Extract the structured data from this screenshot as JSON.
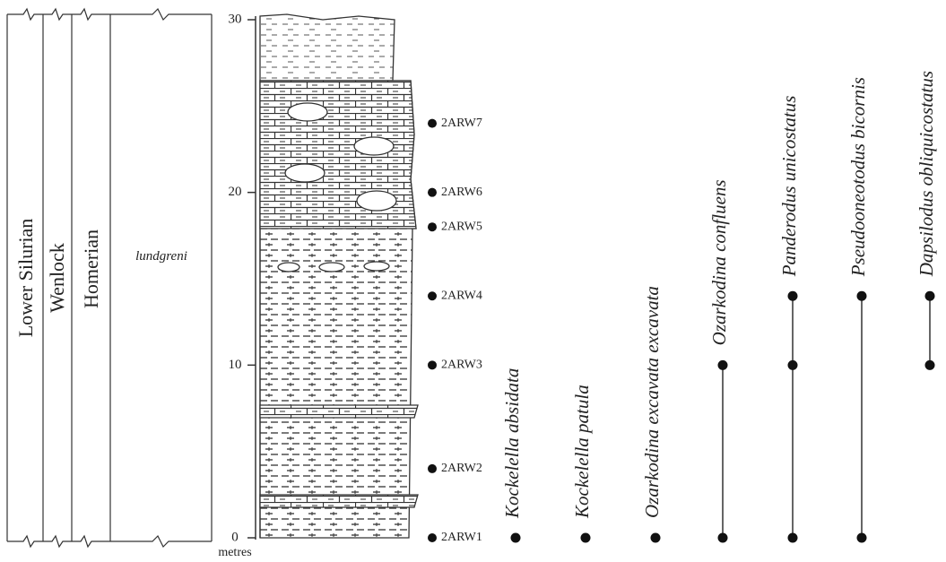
{
  "columns": [
    {
      "label": "Lower Silurian"
    },
    {
      "label": "Wenlock"
    },
    {
      "label": "Homerian"
    },
    {
      "label": "lundgreni"
    }
  ],
  "scale": {
    "unit": "metres",
    "range": [
      0,
      30
    ],
    "ticks": [
      0,
      10,
      20,
      30
    ]
  },
  "samples": [
    {
      "label": "2ARW1",
      "height": 0
    },
    {
      "label": "2ARW2",
      "height": 4
    },
    {
      "label": "2ARW3",
      "height": 10
    },
    {
      "label": "2ARW4",
      "height": 14
    },
    {
      "label": "2ARW5",
      "height": 18
    },
    {
      "label": "2ARW6",
      "height": 20
    },
    {
      "label": "2ARW7",
      "height": 24
    }
  ],
  "taxa": [
    {
      "name": "Kockelella absidata",
      "occurrences": [
        0
      ]
    },
    {
      "name": "Kockelella patula",
      "occurrences": [
        0
      ]
    },
    {
      "name": "Ozarkodina excavata excavata",
      "occurrences": [
        0
      ]
    },
    {
      "name": "Ozarkodina confluens",
      "occurrences": [
        0,
        10
      ]
    },
    {
      "name": "Panderodus unicostatus",
      "occurrences": [
        0,
        10,
        14
      ]
    },
    {
      "name": "Pseudooneotodus bicornis",
      "occurrences": [
        0,
        14
      ]
    },
    {
      "name": "Dapsilodus obliquicostatus",
      "occurrences": [
        10,
        14
      ]
    }
  ]
}
